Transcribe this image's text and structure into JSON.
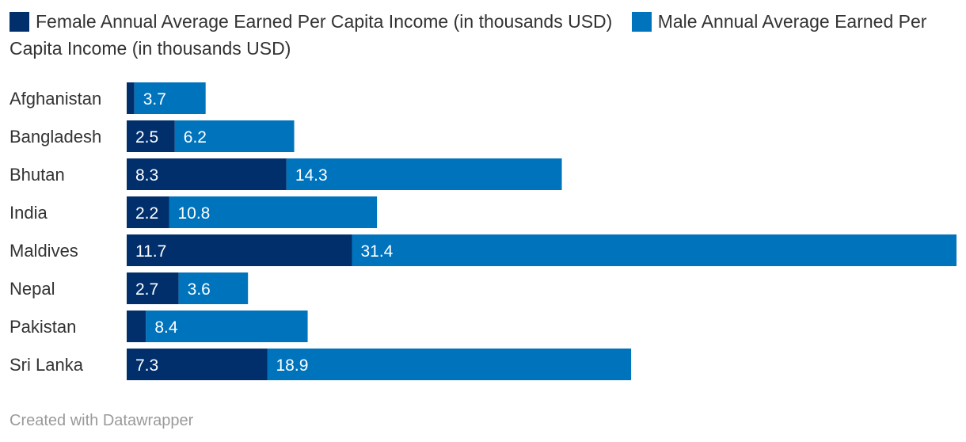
{
  "chart_data": {
    "type": "bar",
    "orientation": "horizontal",
    "stacked": true,
    "title": "",
    "xlabel": "",
    "ylabel": "",
    "categories": [
      "Afghanistan",
      "Bangladesh",
      "Bhutan",
      "India",
      "Maldives",
      "Nepal",
      "Pakistan",
      "Sri Lanka"
    ],
    "series": [
      {
        "name": "Female Annual Average Earned Per Capita Income (in thousands USD)",
        "color": "#002f6c",
        "values": [
          0.4,
          2.5,
          8.3,
          2.2,
          11.7,
          2.7,
          1.0,
          7.3
        ],
        "labels": [
          "",
          "2.5",
          "8.3",
          "2.2",
          "11.7",
          "2.7",
          "",
          "7.3"
        ]
      },
      {
        "name": "Male Annual Average Earned Per Capita Income (in thousands USD)",
        "color": "#0073bd",
        "values": [
          3.7,
          6.2,
          14.3,
          10.8,
          31.4,
          3.6,
          8.4,
          18.9
        ],
        "labels": [
          "3.7",
          "6.2",
          "14.3",
          "10.8",
          "31.4",
          "3.6",
          "8.4",
          "18.9"
        ]
      }
    ],
    "xlim": [
      0,
      43.1
    ],
    "grid": false,
    "legend": "top"
  },
  "footer": "Created with Datawrapper"
}
